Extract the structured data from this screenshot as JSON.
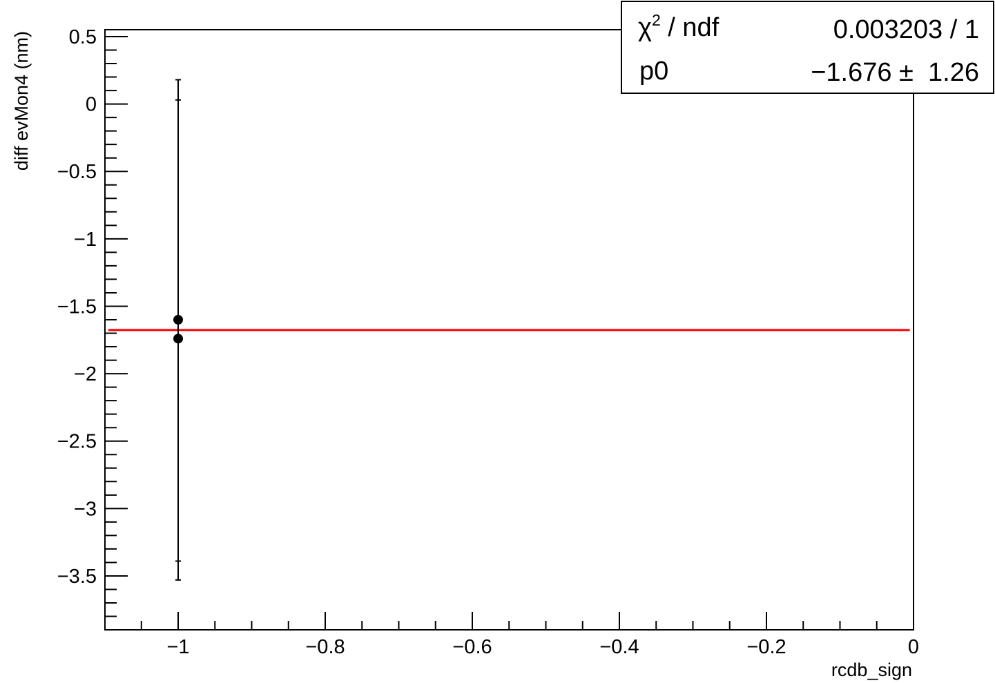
{
  "chart_data": {
    "type": "scatter",
    "xlabel": "rcdb_sign",
    "ylabel": "diff evMon4 (nm)",
    "xlim": [
      -1.1,
      0
    ],
    "ylim": [
      -3.9,
      0.55
    ],
    "grid": false,
    "x_ticks": [
      {
        "value": -1,
        "label": "−1"
      },
      {
        "value": -0.8,
        "label": "−0.8"
      },
      {
        "value": -0.6,
        "label": "−0.6"
      },
      {
        "value": -0.4,
        "label": "−0.4"
      },
      {
        "value": -0.2,
        "label": "−0.2"
      },
      {
        "value": 0,
        "label": "0"
      }
    ],
    "y_ticks": [
      {
        "value": 0.5,
        "label": "0.5"
      },
      {
        "value": 0,
        "label": "0"
      },
      {
        "value": -0.5,
        "label": "−0.5"
      },
      {
        "value": -1,
        "label": "−1"
      },
      {
        "value": -1.5,
        "label": "−1.5"
      },
      {
        "value": -2,
        "label": "−2"
      },
      {
        "value": -2.5,
        "label": "−2.5"
      },
      {
        "value": -3,
        "label": "−3"
      },
      {
        "value": -3.5,
        "label": "−3.5"
      }
    ],
    "points": [
      {
        "x": -1,
        "y": -1.6,
        "err_low": 1.93,
        "err_high": 1.78
      },
      {
        "x": -1,
        "y": -1.74,
        "err_low": 1.65,
        "err_high": 1.77
      }
    ],
    "fit": {
      "value": -1.676,
      "x_range": [
        -1.095,
        -0.005
      ],
      "color": "#ff0000"
    },
    "stats": {
      "rows": [
        {
          "label_main": "χ",
          "label_sup": "2",
          "label_rest": " / ndf",
          "value": "0.003203 / 1"
        },
        {
          "label_main": "p0",
          "label_sup": "",
          "label_rest": "",
          "value": "−1.676 ±  1.26"
        }
      ],
      "placement": "top-right"
    }
  }
}
